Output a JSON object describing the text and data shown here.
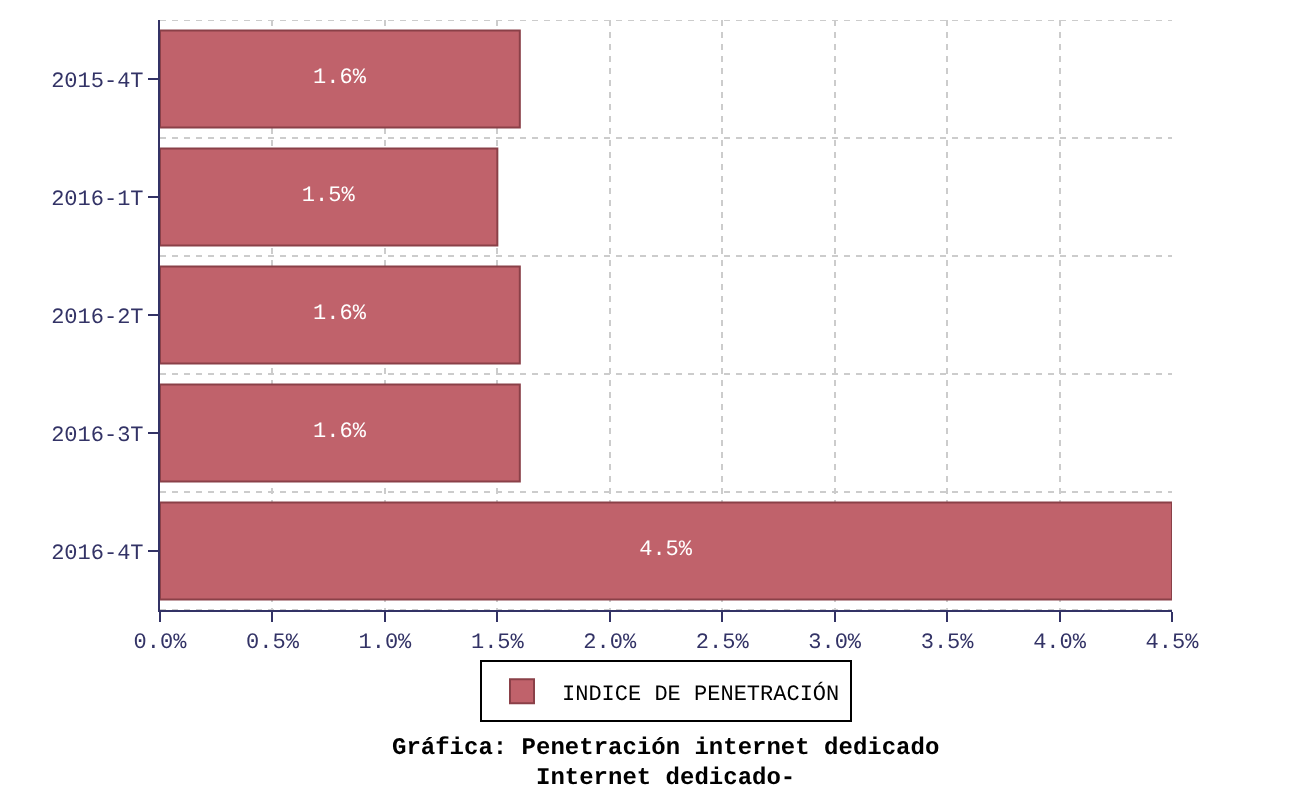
{
  "chart_data": {
    "type": "bar",
    "orientation": "horizontal",
    "title": "Gráfica: Penetración internet dedicado",
    "subtitle": "Internet dedicado-",
    "categories": [
      "2015-4T",
      "2016-1T",
      "2016-2T",
      "2016-3T",
      "2016-4T"
    ],
    "series": [
      {
        "name": "INDICE DE PENETRACIÓN",
        "color": "#c0626b",
        "values": [
          1.6,
          1.5,
          1.6,
          1.6,
          4.5
        ],
        "value_labels": [
          "1.6%",
          "1.5%",
          "1.6%",
          "1.6%",
          "4.5%"
        ]
      }
    ],
    "xlim": [
      0,
      4.5
    ],
    "xticks": [
      {
        "value": 0,
        "label": "0.0%"
      },
      {
        "value": 0.5,
        "label": "0.5%"
      },
      {
        "value": 1,
        "label": "1.0%"
      },
      {
        "value": 1.5,
        "label": "1.5%"
      },
      {
        "value": 2,
        "label": "2.0%"
      },
      {
        "value": 2.5,
        "label": "2.5%"
      },
      {
        "value": 3,
        "label": "3.0%"
      },
      {
        "value": 3.5,
        "label": "3.5%"
      },
      {
        "value": 4,
        "label": "4.0%"
      },
      {
        "value": 4.5,
        "label": "4.5%"
      }
    ],
    "grid": true,
    "legend": "bottom"
  }
}
